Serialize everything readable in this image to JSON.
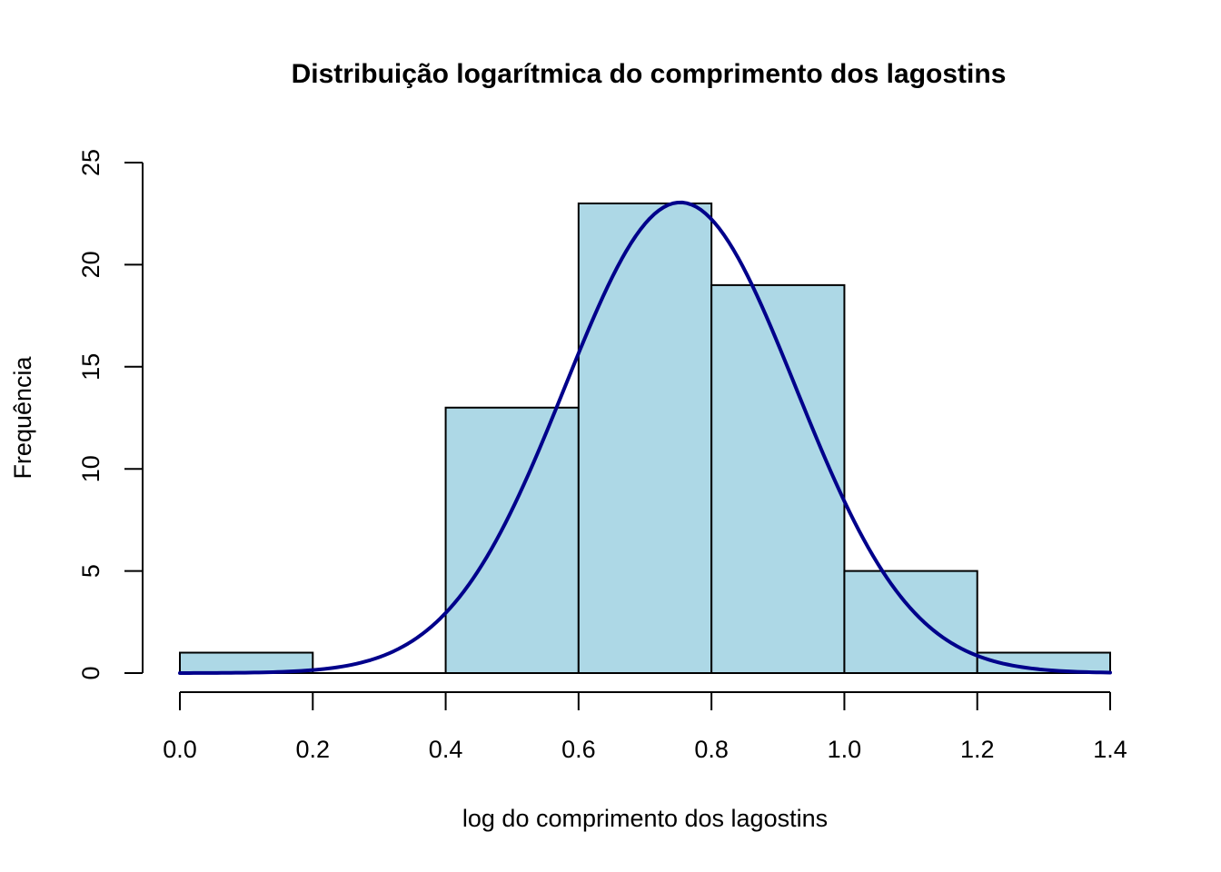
{
  "chart_data": {
    "type": "bar",
    "title": "Distribuição logarítmica do comprimento dos lagostins",
    "xlabel": "log do comprimento dos lagostins",
    "ylabel": "Frequência",
    "bins": [
      {
        "start": 0.0,
        "end": 0.2,
        "count": 1
      },
      {
        "start": 0.2,
        "end": 0.4,
        "count": 0
      },
      {
        "start": 0.4,
        "end": 0.6,
        "count": 13
      },
      {
        "start": 0.6,
        "end": 0.8,
        "count": 23
      },
      {
        "start": 0.8,
        "end": 1.0,
        "count": 19
      },
      {
        "start": 1.0,
        "end": 1.2,
        "count": 5
      },
      {
        "start": 1.2,
        "end": 1.4,
        "count": 1
      }
    ],
    "xlim": [
      0.0,
      1.4
    ],
    "ylim": [
      0,
      25
    ],
    "x_ticks": [
      "0.0",
      "0.2",
      "0.4",
      "0.6",
      "0.8",
      "1.0",
      "1.2",
      "1.4"
    ],
    "y_ticks": [
      "0",
      "5",
      "10",
      "15",
      "20",
      "25"
    ],
    "density_curve": {
      "type": "normal",
      "mean": 0.753,
      "sd": 0.174,
      "peak": 23.05,
      "color": "#00008B"
    },
    "bar_fill": "#ADD8E6",
    "bar_stroke": "#000000",
    "grid": false,
    "legend": "none"
  }
}
